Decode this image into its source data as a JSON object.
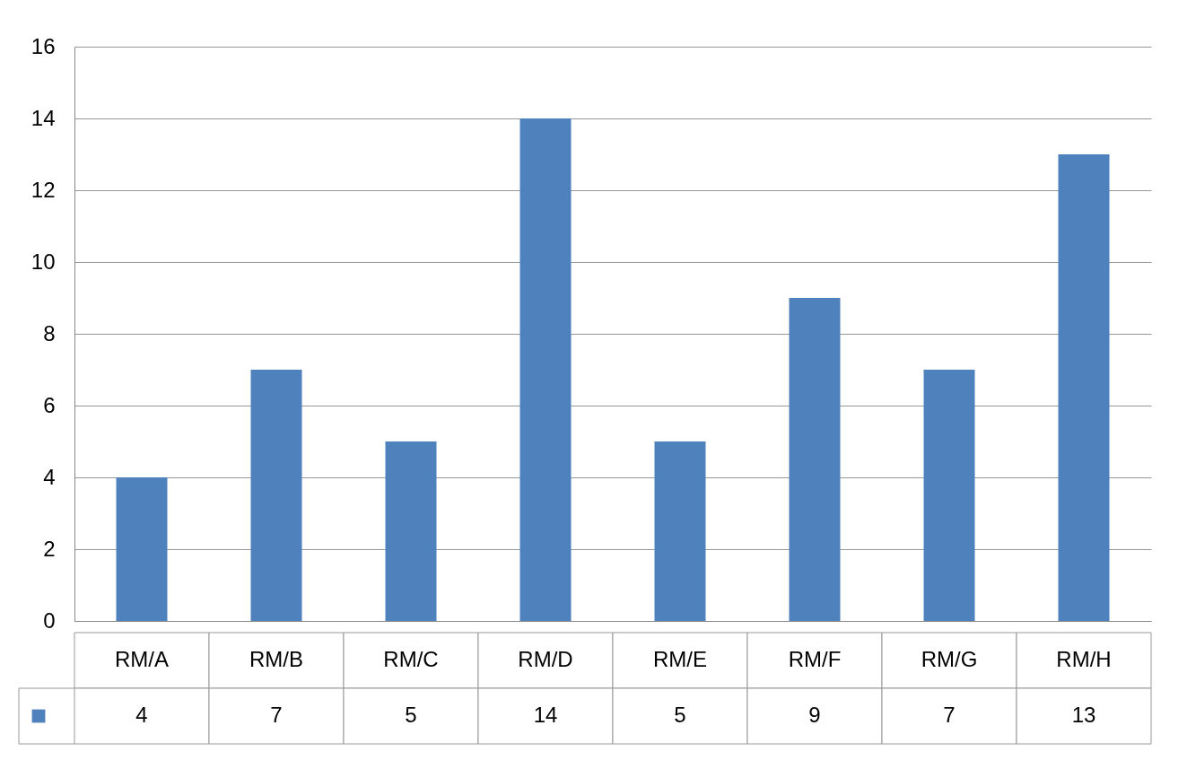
{
  "chart_data": {
    "type": "bar",
    "categories": [
      "RM/A",
      "RM/B",
      "RM/C",
      "RM/D",
      "RM/E",
      "RM/F",
      "RM/G",
      "RM/H"
    ],
    "series": [
      {
        "color": "#4f81bd",
        "values": [
          4,
          7,
          5,
          14,
          5,
          9,
          7,
          13
        ]
      }
    ],
    "ylim": [
      0,
      16
    ],
    "yticks": [
      0,
      2,
      4,
      6,
      8,
      10,
      12,
      14,
      16
    ],
    "grid": "y",
    "data_labels": true
  }
}
